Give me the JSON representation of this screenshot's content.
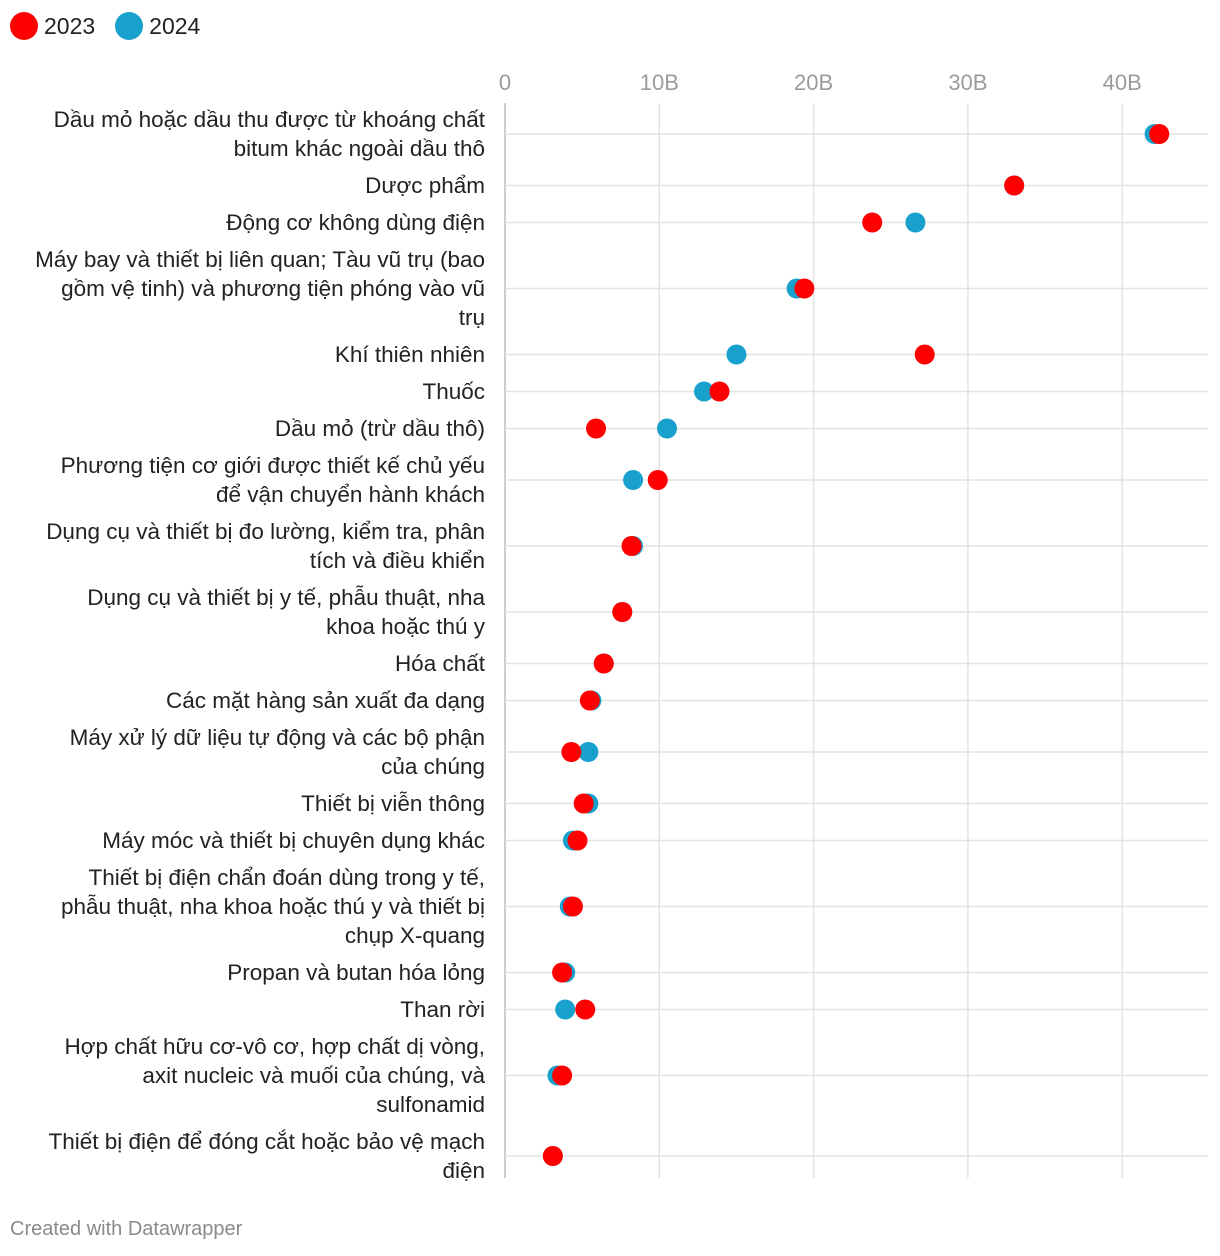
{
  "legend": [
    {
      "label": "2023",
      "color": "#ff0000"
    },
    {
      "label": "2024",
      "color": "#18a1cd"
    }
  ],
  "footer": "Created with Datawrapper",
  "chart_data": {
    "type": "dot",
    "title": "",
    "x_ticks": [
      {
        "value": 0,
        "label": "0"
      },
      {
        "value": 10,
        "label": "10B"
      },
      {
        "value": 20,
        "label": "20B"
      },
      {
        "value": 30,
        "label": "30B"
      },
      {
        "value": 40,
        "label": "40B"
      }
    ],
    "xlim": [
      0,
      45
    ],
    "grid": true,
    "series": [
      {
        "name": "2023",
        "color": "#ff0000"
      },
      {
        "name": "2024",
        "color": "#18a1cd"
      }
    ],
    "categories": [
      {
        "label": [
          "Dầu mỏ hoặc dầu thu được từ khoáng chất",
          "bitum khác ngoài dầu thô"
        ],
        "v2023": 42.4,
        "v2024": 42.1
      },
      {
        "label": [
          "Dược phẩm"
        ],
        "v2023": 33.0,
        "v2024": 33.0
      },
      {
        "label": [
          "Động cơ không dùng điện"
        ],
        "v2023": 23.8,
        "v2024": 26.6
      },
      {
        "label": [
          "Máy bay và thiết bị liên quan; Tàu vũ trụ (bao",
          "gồm vệ tinh) và phương tiện phóng vào vũ",
          "trụ"
        ],
        "v2023": 19.4,
        "v2024": 18.9
      },
      {
        "label": [
          "Khí thiên nhiên"
        ],
        "v2023": 27.2,
        "v2024": 15.0
      },
      {
        "label": [
          "Thuốc"
        ],
        "v2023": 13.9,
        "v2024": 12.9
      },
      {
        "label": [
          "Dầu mỏ (trừ dầu thô)"
        ],
        "v2023": 5.9,
        "v2024": 10.5
      },
      {
        "label": [
          "Phương tiện cơ giới được thiết kế chủ yếu",
          "để vận chuyển hành khách"
        ],
        "v2023": 9.9,
        "v2024": 8.3
      },
      {
        "label": [
          "Dụng cụ và thiết bị đo lường, kiểm tra, phân",
          "tích và điều khiển"
        ],
        "v2023": 8.2,
        "v2024": 8.3
      },
      {
        "label": [
          "Dụng cụ và thiết bị y tế, phẫu thuật, nha",
          "khoa hoặc thú y"
        ],
        "v2023": 7.6,
        "v2024": 7.6
      },
      {
        "label": [
          "Hóa chất"
        ],
        "v2023": 6.4,
        "v2024": 6.4
      },
      {
        "label": [
          "Các mặt hàng sản xuất đa dạng"
        ],
        "v2023": 5.5,
        "v2024": 5.6
      },
      {
        "label": [
          "Máy xử lý dữ liệu tự động và các bộ phận",
          "của chúng"
        ],
        "v2023": 4.3,
        "v2024": 5.4
      },
      {
        "label": [
          "Thiết bị viễn thông"
        ],
        "v2023": 5.1,
        "v2024": 5.4
      },
      {
        "label": [
          "Máy móc và thiết bị chuyên dụng khác"
        ],
        "v2023": 4.7,
        "v2024": 4.4
      },
      {
        "label": [
          "Thiết bị điện chẩn đoán dùng trong y tế,",
          "phẫu thuật, nha khoa hoặc thú y và thiết bị",
          "chụp X-quang"
        ],
        "v2023": 4.4,
        "v2024": 4.2
      },
      {
        "label": [
          "Propan và butan hóa lỏng"
        ],
        "v2023": 3.7,
        "v2024": 3.9
      },
      {
        "label": [
          "Than rời"
        ],
        "v2023": 5.2,
        "v2024": 3.9
      },
      {
        "label": [
          "Hợp chất hữu cơ-vô cơ, hợp chất dị vòng,",
          "axit nucleic và muối của chúng, và",
          "sulfonamid"
        ],
        "v2023": 3.7,
        "v2024": 3.4
      },
      {
        "label": [
          "Thiết bị điện để đóng cắt hoặc bảo vệ mạch",
          "điện"
        ],
        "v2023": 3.1,
        "v2024": 3.1
      }
    ]
  }
}
